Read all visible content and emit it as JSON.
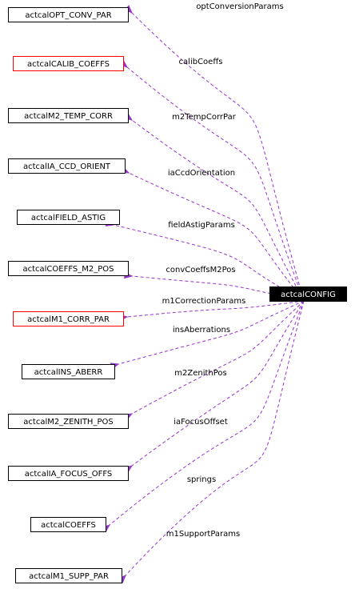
{
  "diagram": {
    "main_node": "actcalCONFIG",
    "nodes": [
      {
        "id": "opt",
        "label": "actcalOPT_CONV_PAR",
        "border": "black"
      },
      {
        "id": "calib",
        "label": "actcalCALIB_COEFFS",
        "border": "red"
      },
      {
        "id": "m2temp",
        "label": "actcalM2_TEMP_CORR",
        "border": "black"
      },
      {
        "id": "ccd",
        "label": "actcalIA_CCD_ORIENT",
        "border": "black"
      },
      {
        "id": "field",
        "label": "actcalFIELD_ASTIG",
        "border": "black"
      },
      {
        "id": "coeffsm2",
        "label": "actcalCOEFFS_M2_POS",
        "border": "black"
      },
      {
        "id": "m1corr",
        "label": "actcalM1_CORR_PAR",
        "border": "red"
      },
      {
        "id": "ins",
        "label": "actcalINS_ABERR",
        "border": "black"
      },
      {
        "id": "m2zen",
        "label": "actcalM2_ZENITH_POS",
        "border": "black"
      },
      {
        "id": "focus",
        "label": "actcalIA_FOCUS_OFFS",
        "border": "black"
      },
      {
        "id": "coeffs",
        "label": "actcalCOEFFS",
        "border": "black"
      },
      {
        "id": "m1supp",
        "label": "actcalM1_SUPP_PAR",
        "border": "black"
      }
    ],
    "edges": [
      {
        "to": "opt",
        "label": "optConversionParams"
      },
      {
        "to": "calib",
        "label": "calibCoeffs"
      },
      {
        "to": "m2temp",
        "label": "m2TempCorrPar"
      },
      {
        "to": "ccd",
        "label": "iaCcdOrientation"
      },
      {
        "to": "field",
        "label": "fieldAstigParams"
      },
      {
        "to": "coeffsm2",
        "label": "convCoeffsM2Pos"
      },
      {
        "to": "m1corr",
        "label": "m1CorrectionParams"
      },
      {
        "to": "ins",
        "label": "insAberrations"
      },
      {
        "to": "m2zen",
        "label": "m2ZenithPos"
      },
      {
        "to": "focus",
        "label": "iaFocusOffset"
      },
      {
        "to": "coeffs",
        "label": "springs"
      },
      {
        "to": "m1supp",
        "label": "m1SupportParams"
      }
    ],
    "colors": {
      "edge": "#9a32cd",
      "red_border": "#ff0000",
      "main_fill": "#000000",
      "main_text": "#ffffff"
    }
  }
}
